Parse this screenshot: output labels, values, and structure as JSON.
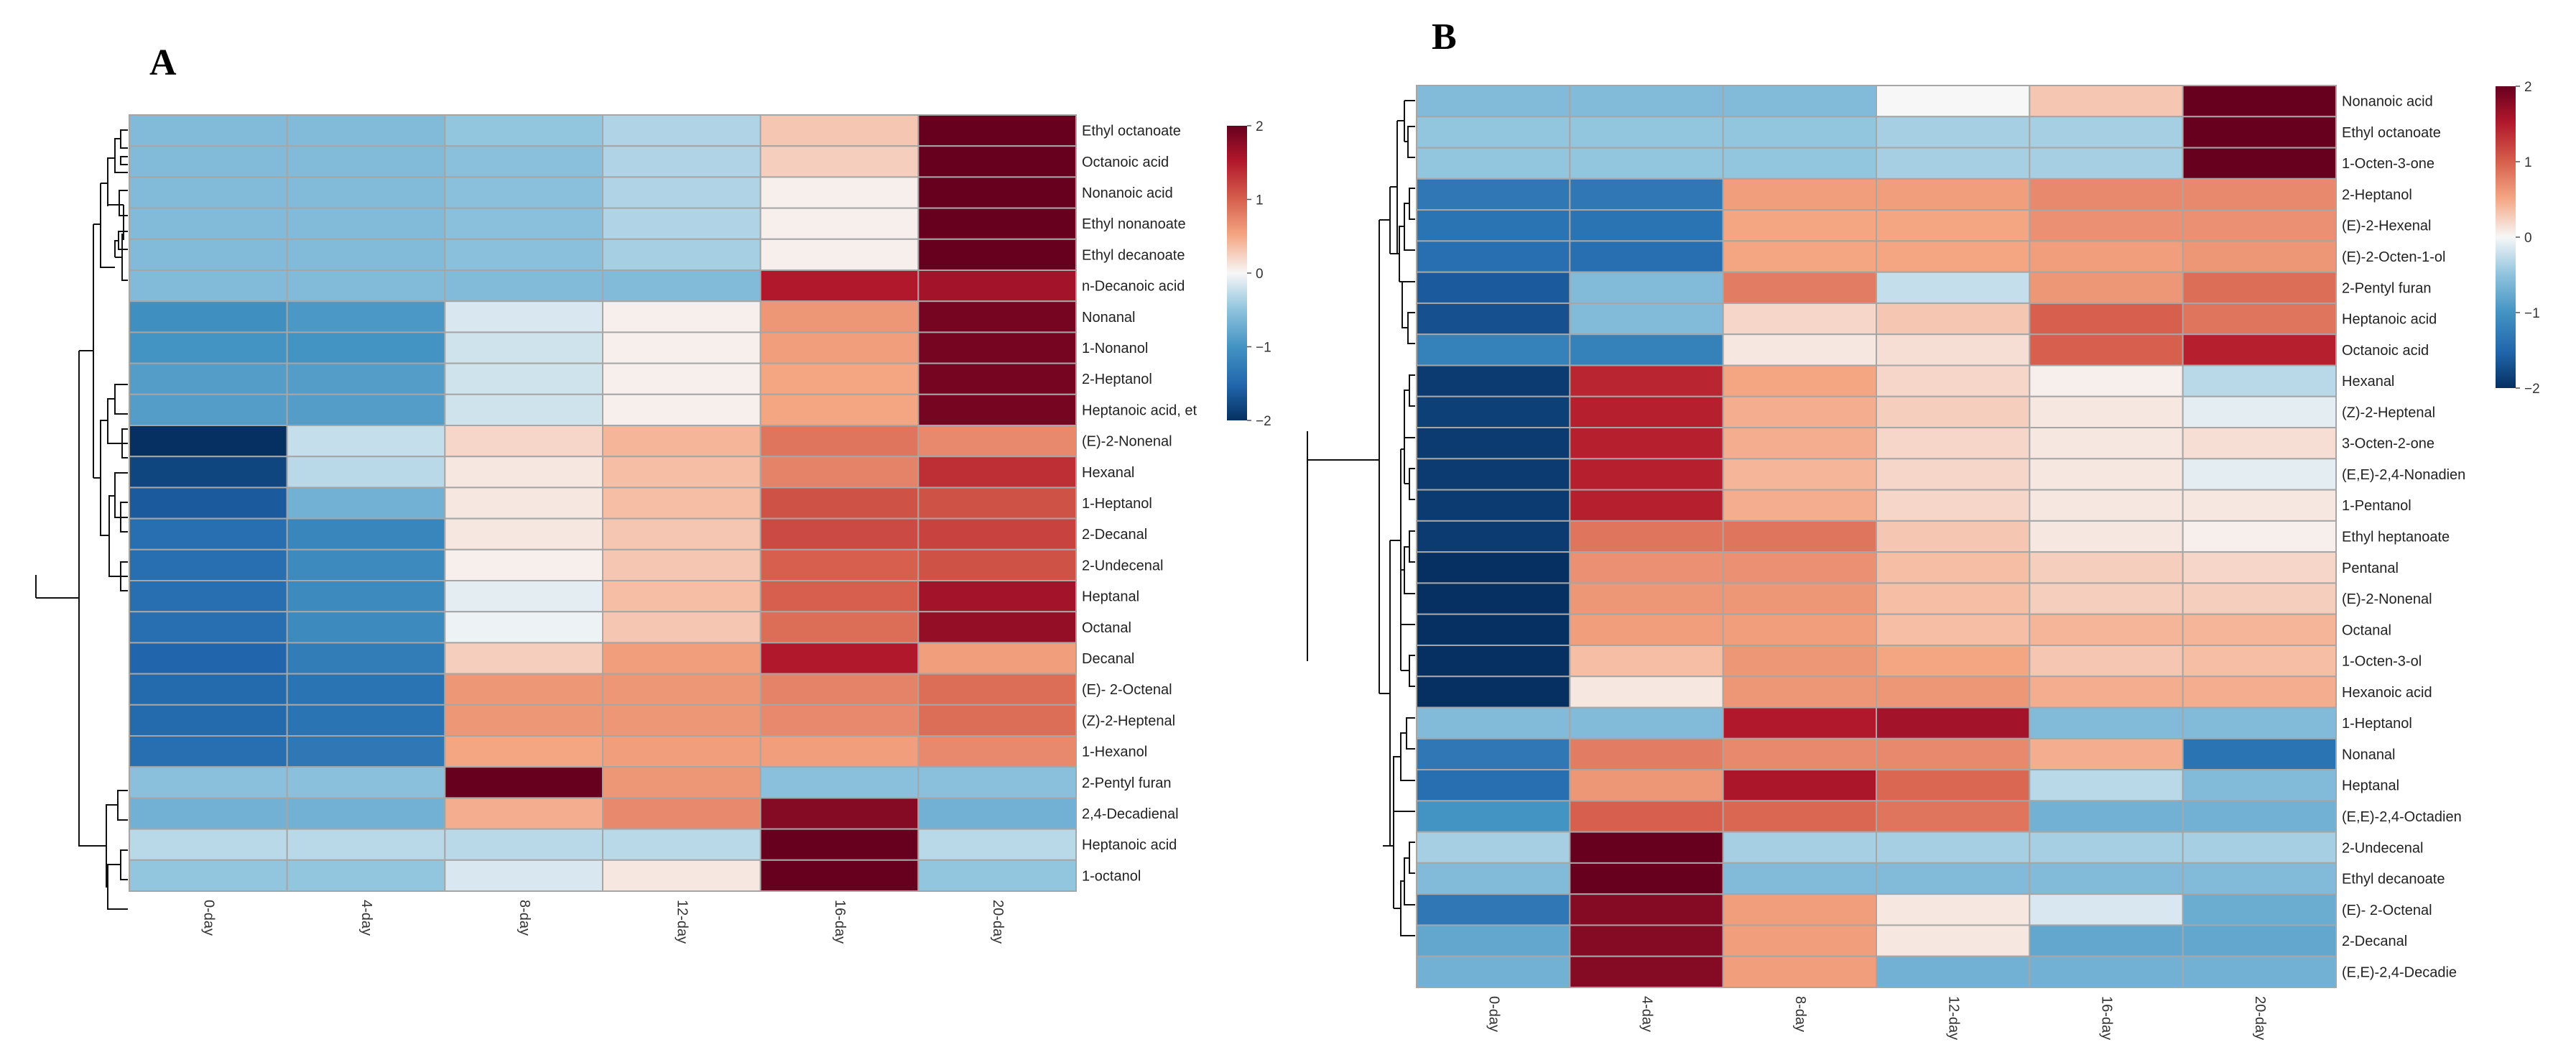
{
  "colors": {
    "low": "#053061",
    "mid": "#f7f7f7",
    "high": "#67001f",
    "grid": "#a6a6a6"
  },
  "chart_data": [
    {
      "type": "heatmap",
      "panel_label": "A",
      "columns": [
        "0-day",
        "4-day",
        "8-day",
        "12-day",
        "16-day",
        "20-day"
      ],
      "rows": [
        "Ethyl octanoate",
        "Octanoic acid",
        "Nonanoic acid",
        "Ethyl nonanoate",
        "Ethyl decanoate",
        "n-Decanoic acid",
        "Nonanal",
        "1-Nonanol",
        "2-Heptanol",
        "Heptanoic acid, et",
        "(E)-2-Nonenal",
        "Hexanal",
        "1-Heptanol",
        "2-Decanal",
        "2-Undecenal",
        "Heptanal",
        "Octanal",
        "Decanal",
        "(E)- 2-Octenal",
        "(Z)-2-Heptenal",
        "1-Hexanol",
        "2-Pentyl furan",
        " 2,4-Decadienal",
        "Heptanoic acid",
        "1-octanol"
      ],
      "values": [
        [
          -0.6,
          -0.6,
          -0.5,
          -0.35,
          0.3,
          2.2
        ],
        [
          -0.6,
          -0.6,
          -0.55,
          -0.35,
          0.25,
          2.2
        ],
        [
          -0.6,
          -0.6,
          -0.55,
          -0.35,
          0.05,
          2.2
        ],
        [
          -0.6,
          -0.6,
          -0.55,
          -0.35,
          0.05,
          2.2
        ],
        [
          -0.6,
          -0.6,
          -0.55,
          -0.4,
          0.05,
          2.2
        ],
        [
          -0.6,
          -0.6,
          -0.6,
          -0.6,
          1.5,
          1.6
        ],
        [
          -1.05,
          -0.95,
          -0.15,
          0.05,
          0.6,
          1.9
        ],
        [
          -1.0,
          -1.0,
          -0.2,
          0.05,
          0.55,
          1.9
        ],
        [
          -0.9,
          -0.9,
          -0.2,
          0.05,
          0.5,
          1.9
        ],
        [
          -0.9,
          -0.9,
          -0.2,
          0.05,
          0.5,
          1.9
        ],
        [
          -2.0,
          -0.25,
          0.2,
          0.4,
          0.85,
          0.7
        ],
        [
          -1.8,
          -0.3,
          0.1,
          0.35,
          0.75,
          1.35
        ],
        [
          -1.6,
          -0.7,
          0.1,
          0.35,
          1.1,
          1.1
        ],
        [
          -1.4,
          -1.15,
          0.1,
          0.3,
          1.15,
          1.2
        ],
        [
          -1.4,
          -1.1,
          0.05,
          0.3,
          1.0,
          1.1
        ],
        [
          -1.4,
          -1.1,
          -0.1,
          0.35,
          1.0,
          1.6
        ],
        [
          -1.4,
          -1.1,
          -0.05,
          0.3,
          0.9,
          1.7
        ],
        [
          -1.5,
          -1.25,
          0.25,
          0.55,
          1.5,
          0.55
        ],
        [
          -1.45,
          -1.35,
          0.6,
          0.6,
          0.75,
          0.9
        ],
        [
          -1.45,
          -1.35,
          0.6,
          0.6,
          0.7,
          0.9
        ],
        [
          -1.4,
          -1.3,
          0.5,
          0.55,
          0.55,
          0.7
        ],
        [
          -0.55,
          -0.55,
          2.2,
          0.6,
          -0.55,
          -0.55
        ],
        [
          -0.7,
          -0.7,
          0.45,
          0.7,
          1.8,
          -0.7
        ],
        [
          -0.3,
          -0.3,
          -0.3,
          -0.3,
          2.2,
          -0.3
        ],
        [
          -0.5,
          -0.5,
          -0.15,
          0.1,
          2.2,
          -0.5
        ]
      ],
      "legend": {
        "ticks": [
          "2",
          "1",
          "0",
          "−1",
          "−2"
        ],
        "min": -2,
        "max": 2
      }
    },
    {
      "type": "heatmap",
      "panel_label": "B",
      "columns": [
        "0-day",
        "4-day",
        "8-day",
        "12-day",
        "16-day",
        "20-day"
      ],
      "rows": [
        "Nonanoic acid",
        "Ethyl octanoate",
        "1-Octen-3-one",
        "2-Heptanol",
        "(E)-2-Hexenal",
        "(E)-2-Octen-1-ol",
        "2-Pentyl furan",
        "Heptanoic acid",
        "Octanoic acid",
        "Hexanal",
        "(Z)-2-Heptenal",
        "3-Octen-2-one",
        "(E,E)-2,4-Nonadien",
        "1-Pentanol",
        "Ethyl heptanoate",
        "Pentanal",
        "(E)-2-Nonenal",
        "Octanal",
        "1-Octen-3-ol",
        "Hexanoic acid",
        "1-Heptanol",
        "Nonanal",
        "Heptanal",
        "(E,E)-2,4-Octadien",
        "2-Undecenal",
        "Ethyl decanoate",
        "(E)- 2-Octenal",
        "2-Decanal",
        " (E,E)-2,4-Decadie"
      ],
      "values": [
        [
          -0.6,
          -0.6,
          -0.6,
          0.0,
          0.3,
          2.3
        ],
        [
          -0.5,
          -0.5,
          -0.5,
          -0.4,
          -0.4,
          2.3
        ],
        [
          -0.5,
          -0.5,
          -0.5,
          -0.4,
          -0.4,
          2.3
        ],
        [
          -1.3,
          -1.3,
          0.55,
          0.55,
          0.7,
          0.7
        ],
        [
          -1.35,
          -1.35,
          0.5,
          0.5,
          0.65,
          0.65
        ],
        [
          -1.4,
          -1.4,
          0.5,
          0.5,
          0.55,
          0.6
        ],
        [
          -1.6,
          -0.6,
          0.8,
          -0.25,
          0.6,
          0.9
        ],
        [
          -1.7,
          -0.6,
          0.2,
          0.3,
          1.0,
          0.85
        ],
        [
          -1.2,
          -1.2,
          0.1,
          0.15,
          1.0,
          1.45
        ],
        [
          -1.9,
          1.4,
          0.5,
          0.2,
          0.05,
          -0.3
        ],
        [
          -1.85,
          1.45,
          0.45,
          0.25,
          0.1,
          -0.1
        ],
        [
          -1.9,
          1.45,
          0.45,
          0.2,
          0.1,
          0.15
        ],
        [
          -1.9,
          1.45,
          0.4,
          0.2,
          0.1,
          -0.1
        ],
        [
          -1.9,
          1.45,
          0.45,
          0.2,
          0.1,
          0.1
        ],
        [
          -1.9,
          0.85,
          0.85,
          0.3,
          0.1,
          0.05
        ],
        [
          -2.0,
          0.65,
          0.65,
          0.35,
          0.25,
          0.2
        ],
        [
          -2.0,
          0.6,
          0.6,
          0.35,
          0.25,
          0.25
        ],
        [
          -2.05,
          0.55,
          0.55,
          0.35,
          0.4,
          0.4
        ],
        [
          -2.05,
          0.35,
          0.6,
          0.5,
          0.3,
          0.35
        ],
        [
          -2.05,
          0.1,
          0.6,
          0.6,
          0.45,
          0.45
        ],
        [
          -0.6,
          -0.6,
          1.5,
          1.6,
          -0.6,
          -0.6
        ],
        [
          -1.3,
          0.8,
          0.7,
          0.7,
          0.45,
          -1.35
        ],
        [
          -1.4,
          0.6,
          1.55,
          0.95,
          -0.3,
          -0.6
        ],
        [
          -1.0,
          1.0,
          0.95,
          0.85,
          -0.7,
          -0.7
        ],
        [
          -0.4,
          2.5,
          -0.4,
          -0.4,
          -0.4,
          -0.4
        ],
        [
          -0.6,
          2.5,
          -0.6,
          -0.6,
          -0.6,
          -0.6
        ],
        [
          -1.3,
          1.8,
          0.55,
          0.1,
          -0.15,
          -0.75
        ],
        [
          -0.8,
          1.8,
          0.55,
          0.1,
          -0.8,
          -0.8
        ],
        [
          -0.7,
          1.8,
          0.55,
          -0.7,
          -0.7,
          -0.7
        ]
      ],
      "legend": {
        "ticks": [
          "2",
          "1",
          "0",
          "−1",
          "−2"
        ],
        "min": -2,
        "max": 2
      }
    }
  ]
}
